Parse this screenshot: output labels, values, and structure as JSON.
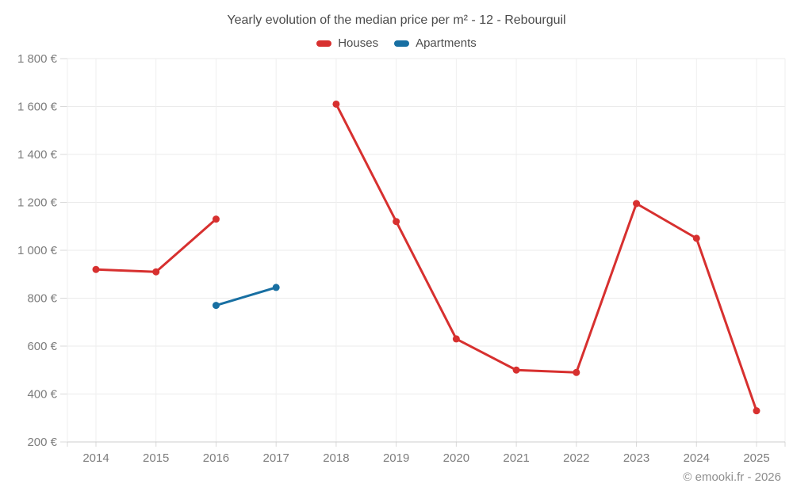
{
  "chart_data": {
    "type": "line",
    "title": "Yearly evolution of the median price per m² - 12 - Rebourguil",
    "xlabel": "",
    "ylabel": "",
    "categories": [
      "2014",
      "2015",
      "2016",
      "2017",
      "2018",
      "2019",
      "2020",
      "2021",
      "2022",
      "2023",
      "2024",
      "2025"
    ],
    "series": [
      {
        "name": "Houses",
        "color": "#d7302f",
        "values": [
          920,
          910,
          1130,
          null,
          1610,
          1120,
          630,
          500,
          490,
          1195,
          1050,
          330
        ]
      },
      {
        "name": "Apartments",
        "color": "#186fa2",
        "values": [
          null,
          null,
          770,
          845,
          null,
          null,
          null,
          null,
          null,
          null,
          null,
          null
        ]
      }
    ],
    "ylim": [
      200,
      1800
    ],
    "y_ticks": [
      {
        "value": 200,
        "label": "200 €"
      },
      {
        "value": 400,
        "label": "400 €"
      },
      {
        "value": 600,
        "label": "600 €"
      },
      {
        "value": 800,
        "label": "800 €"
      },
      {
        "value": 1000,
        "label": "1 000 €"
      },
      {
        "value": 1200,
        "label": "1 200 €"
      },
      {
        "value": 1400,
        "label": "1 400 €"
      },
      {
        "value": 1600,
        "label": "1 600 €"
      },
      {
        "value": 1800,
        "label": "1 800 €"
      }
    ],
    "grid": true,
    "legend_position": "top",
    "style": {
      "grid_color": "#ebebeb",
      "vgrid_color": "#efefef",
      "axis_line_color": "#cccccc",
      "tick_color": "#d9d9d9",
      "axis_text_color": "#7d7d7d"
    }
  },
  "footer": {
    "credit": "© emooki.fr - 2026"
  }
}
